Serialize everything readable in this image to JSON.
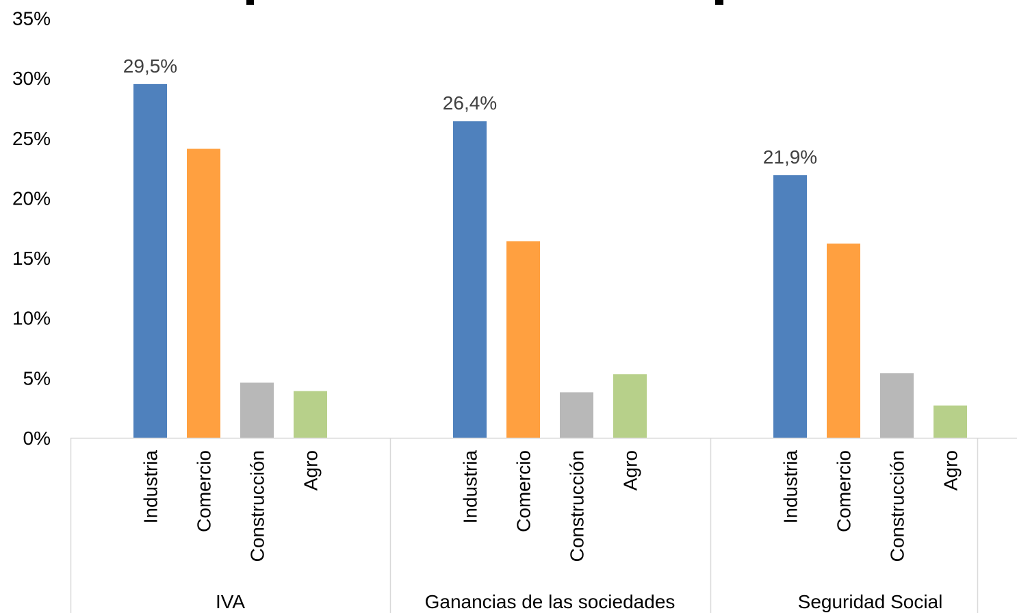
{
  "chart_data": {
    "type": "bar",
    "ylim": [
      0,
      35
    ],
    "y_ticks": [
      "0%",
      "5%",
      "10%",
      "15%",
      "20%",
      "25%",
      "30%",
      "35%"
    ],
    "y_tick_values": [
      0,
      5,
      10,
      15,
      20,
      25,
      30,
      35
    ],
    "grid": false,
    "groups": [
      "IVA",
      "Ganancias de las sociedades",
      "Seguridad Social"
    ],
    "categories": [
      "Industria",
      "Comercio",
      "Construcción",
      "Agro"
    ],
    "colors": [
      "#4f81bd",
      "#ffa040",
      "#b8b8b8",
      "#b7d08a"
    ],
    "values": [
      [
        29.5,
        24.1,
        4.6,
        3.9
      ],
      [
        26.4,
        16.4,
        3.8,
        5.3
      ],
      [
        21.9,
        16.2,
        5.4,
        2.7
      ]
    ],
    "data_labels": [
      [
        "29,5%",
        "",
        "",
        ""
      ],
      [
        "26,4%",
        "",
        "",
        ""
      ],
      [
        "21,9%",
        "",
        "",
        ""
      ]
    ]
  }
}
